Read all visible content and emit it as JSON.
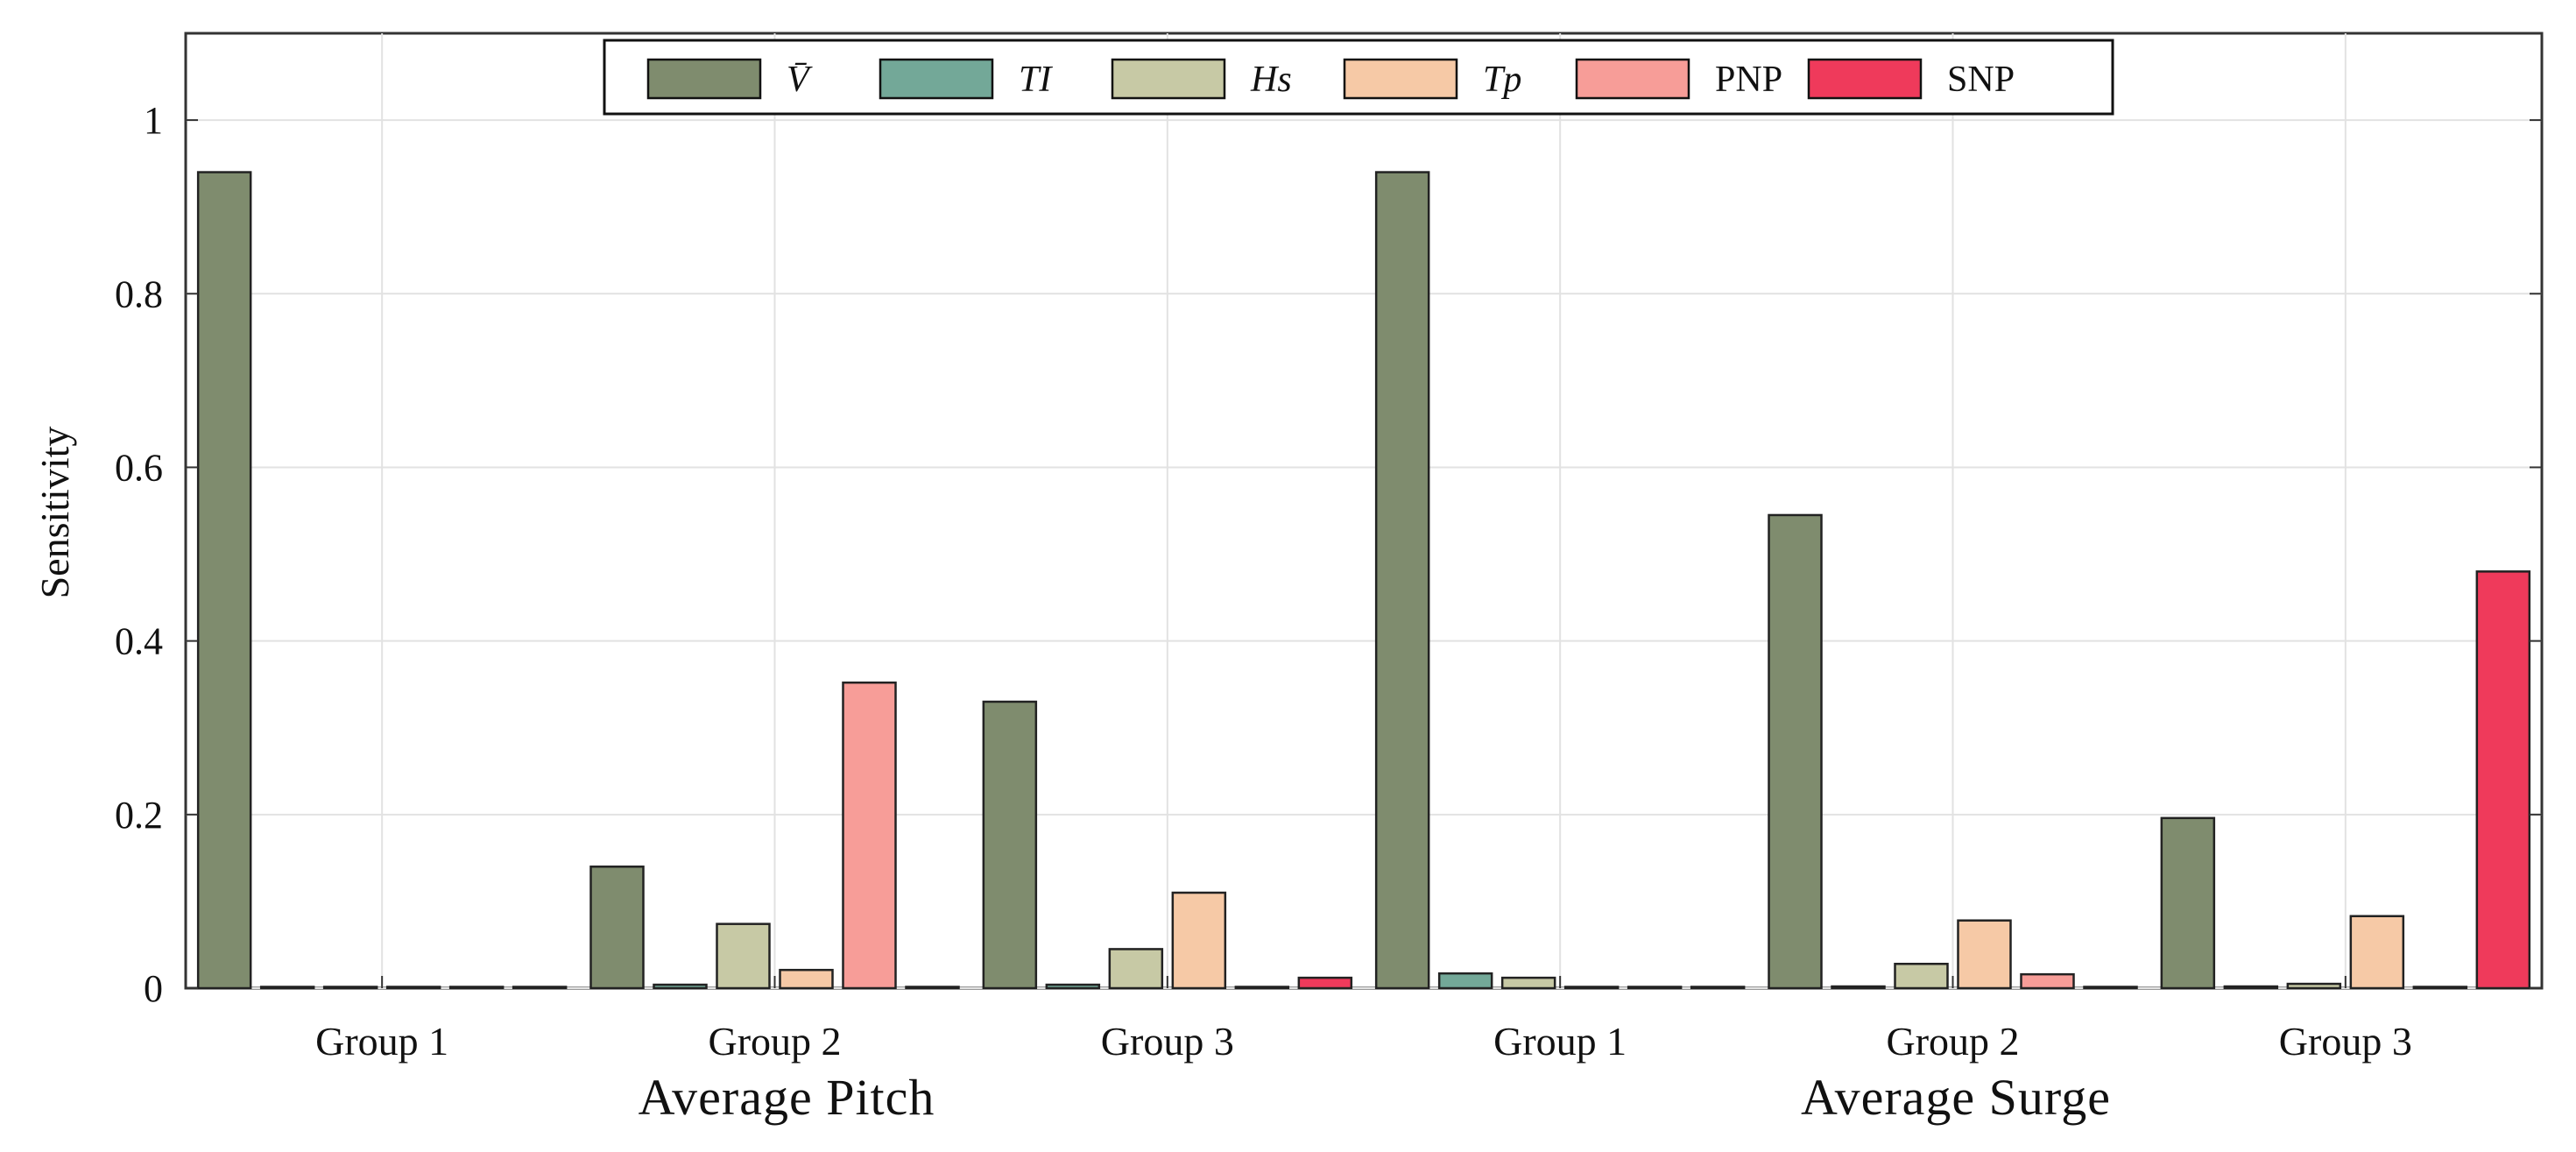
{
  "chart_data": {
    "type": "bar",
    "ylabel": "Sensitivity",
    "ylim": [
      0,
      1.1
    ],
    "yticks": [
      "0",
      "0.2",
      "0.4",
      "0.6",
      "0.8",
      "1"
    ],
    "grid": true,
    "legend_position": "top-center",
    "categories": [
      "Group 1",
      "Group 2",
      "Group 3",
      "Group 1",
      "Group 2",
      "Group 3"
    ],
    "group_labels": [
      "Average Pitch",
      "Average Surge"
    ],
    "series": [
      {
        "name": "V̄",
        "color": "#7f8c6e",
        "values": [
          0.94,
          0.14,
          0.33,
          0.94,
          0.545,
          0.196
        ]
      },
      {
        "name": "TI",
        "color": "#73a898",
        "values": [
          0.0,
          0.004,
          0.004,
          0.017,
          0.002,
          0.002
        ]
      },
      {
        "name": "Hs",
        "color": "#c7c9a5",
        "values": [
          0.0,
          0.074,
          0.045,
          0.012,
          0.028,
          0.005
        ]
      },
      {
        "name": "Tp",
        "color": "#f6c9a6",
        "values": [
          0.0,
          0.021,
          0.11,
          0.0,
          0.078,
          0.083
        ]
      },
      {
        "name": "PNP",
        "color": "#f79d98",
        "values": [
          0.0,
          0.352,
          0.0,
          0.0,
          0.016,
          0.0
        ]
      },
      {
        "name": "SNP",
        "color": "#ef3a5b",
        "values": [
          0.0,
          0.0,
          0.012,
          0.0,
          0.0,
          0.48
        ]
      }
    ]
  }
}
